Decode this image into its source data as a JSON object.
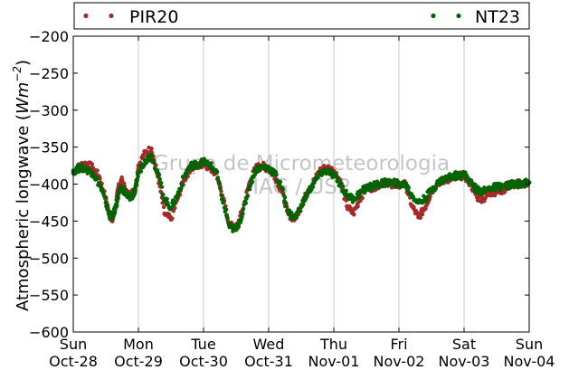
{
  "chart_data": {
    "type": "scatter",
    "ylabel_text": "Atmospheric longwave (",
    "ylabel_unit_base": "Wm",
    "ylabel_unit_exp": "−2",
    "ylabel_close": ")",
    "ylim": [
      -600,
      -200
    ],
    "yticks": [
      -600,
      -550,
      -500,
      -450,
      -400,
      -350,
      -300,
      -250,
      -200
    ],
    "ytick_labels": [
      "−600",
      "−550",
      "−500",
      "−450",
      "−400",
      "−350",
      "−300",
      "−250",
      "−200"
    ],
    "xlim_days": [
      0,
      7
    ],
    "x_tick_days": [
      0,
      1,
      2,
      3,
      4,
      5,
      6,
      7
    ],
    "x_tick_weekday": [
      "Sun",
      "Mon",
      "Tue",
      "Wed",
      "Thu",
      "Fri",
      "Sat",
      "Sun"
    ],
    "x_tick_date": [
      "Oct-28",
      "Oct-29",
      "Oct-30",
      "Oct-31",
      "Nov-01",
      "Nov-02",
      "Nov-03",
      "Nov-04"
    ],
    "grid": "x-vertical",
    "legend_placement": "top",
    "watermark": [
      "Grupo de Micrometeorologia",
      "IAG / USP"
    ],
    "series": [
      {
        "name": "PIR20",
        "color": "#a52a2a",
        "x": [
          0.0,
          0.1,
          0.2,
          0.3,
          0.4,
          0.5,
          0.55,
          0.6,
          0.65,
          0.7,
          0.75,
          0.8,
          0.85,
          0.9,
          0.95,
          1.0,
          1.1,
          1.2,
          1.3,
          1.4,
          1.5,
          1.6,
          1.7,
          1.8,
          1.9,
          2.0,
          2.1,
          2.2,
          2.3,
          2.4,
          2.5,
          2.6,
          2.7,
          2.8,
          2.9,
          3.0,
          3.1,
          3.2,
          3.3,
          3.4,
          3.5,
          3.6,
          3.7,
          3.8,
          3.9,
          4.0,
          4.1,
          4.2,
          4.3,
          4.4,
          4.5,
          4.6,
          4.7,
          4.8,
          4.9,
          5.0,
          5.1,
          5.2,
          5.3,
          5.4,
          5.5,
          5.6,
          5.7,
          5.8,
          5.9,
          6.0,
          6.1,
          6.2,
          6.3,
          6.4,
          6.5,
          6.6,
          6.7,
          6.8,
          6.9,
          7.0
        ],
        "y": [
          -385,
          -375,
          -372,
          -378,
          -390,
          -420,
          -440,
          -450,
          -430,
          -400,
          -395,
          -410,
          -415,
          -412,
          -408,
          -375,
          -358,
          -352,
          -390,
          -440,
          -448,
          -420,
          -395,
          -378,
          -376,
          -372,
          -378,
          -385,
          -420,
          -455,
          -460,
          -435,
          -400,
          -378,
          -375,
          -380,
          -390,
          -410,
          -440,
          -448,
          -428,
          -410,
          -395,
          -380,
          -378,
          -382,
          -395,
          -430,
          -440,
          -420,
          -405,
          -405,
          -400,
          -398,
          -400,
          -402,
          -400,
          -430,
          -445,
          -432,
          -410,
          -398,
          -395,
          -392,
          -390,
          -388,
          -400,
          -418,
          -420,
          -412,
          -410,
          -408,
          -402,
          -400,
          -399,
          -398
        ]
      },
      {
        "name": "NT23",
        "color": "#006400",
        "x": [
          0.0,
          0.1,
          0.2,
          0.3,
          0.4,
          0.5,
          0.55,
          0.6,
          0.65,
          0.7,
          0.75,
          0.8,
          0.85,
          0.9,
          0.95,
          1.0,
          1.1,
          1.2,
          1.3,
          1.4,
          1.5,
          1.6,
          1.7,
          1.8,
          1.9,
          2.0,
          2.1,
          2.2,
          2.3,
          2.4,
          2.5,
          2.6,
          2.7,
          2.8,
          2.9,
          3.0,
          3.1,
          3.2,
          3.3,
          3.4,
          3.5,
          3.6,
          3.7,
          3.8,
          3.9,
          4.0,
          4.1,
          4.2,
          4.3,
          4.4,
          4.5,
          4.6,
          4.7,
          4.8,
          4.9,
          5.0,
          5.1,
          5.2,
          5.3,
          5.4,
          5.5,
          5.6,
          5.7,
          5.8,
          5.9,
          6.0,
          6.1,
          6.2,
          6.3,
          6.4,
          6.5,
          6.6,
          6.7,
          6.8,
          6.9,
          7.0
        ],
        "y": [
          -382,
          -378,
          -380,
          -385,
          -400,
          -425,
          -440,
          -445,
          -432,
          -412,
          -405,
          -412,
          -418,
          -416,
          -410,
          -385,
          -368,
          -362,
          -385,
          -420,
          -432,
          -415,
          -390,
          -375,
          -373,
          -370,
          -374,
          -384,
          -425,
          -458,
          -462,
          -440,
          -405,
          -380,
          -377,
          -378,
          -386,
          -405,
          -438,
          -446,
          -430,
          -412,
          -398,
          -385,
          -382,
          -388,
          -400,
          -415,
          -420,
          -412,
          -405,
          -403,
          -400,
          -398,
          -398,
          -400,
          -400,
          -415,
          -425,
          -420,
          -408,
          -398,
          -393,
          -390,
          -388,
          -386,
          -398,
          -408,
          -410,
          -405,
          -404,
          -403,
          -401,
          -400,
          -399,
          -398
        ]
      }
    ]
  }
}
